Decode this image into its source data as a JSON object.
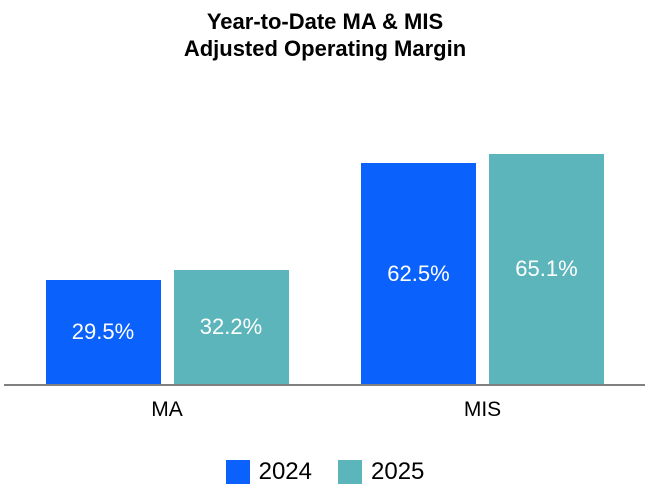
{
  "chart_data": {
    "type": "bar",
    "title_lines": [
      "Year-to-Date MA & MIS",
      "Adjusted Operating Margin"
    ],
    "categories": [
      "MA",
      "MIS"
    ],
    "series": [
      {
        "name": "2024",
        "color": "#0A61FC",
        "values": [
          29.5,
          62.5
        ],
        "value_labels": [
          "29.5%",
          "62.5%"
        ]
      },
      {
        "name": "2025",
        "color": "#5CB5BA",
        "values": [
          32.2,
          65.1
        ],
        "value_labels": [
          "32.2%",
          "65.1%"
        ]
      }
    ],
    "ylim": [
      0,
      70
    ],
    "grid": false,
    "value_label_color": "#FFFFFF",
    "axis_line_color": "#808080",
    "legend_position": "bottom",
    "legend_entries": [
      "2024",
      "2025"
    ]
  }
}
